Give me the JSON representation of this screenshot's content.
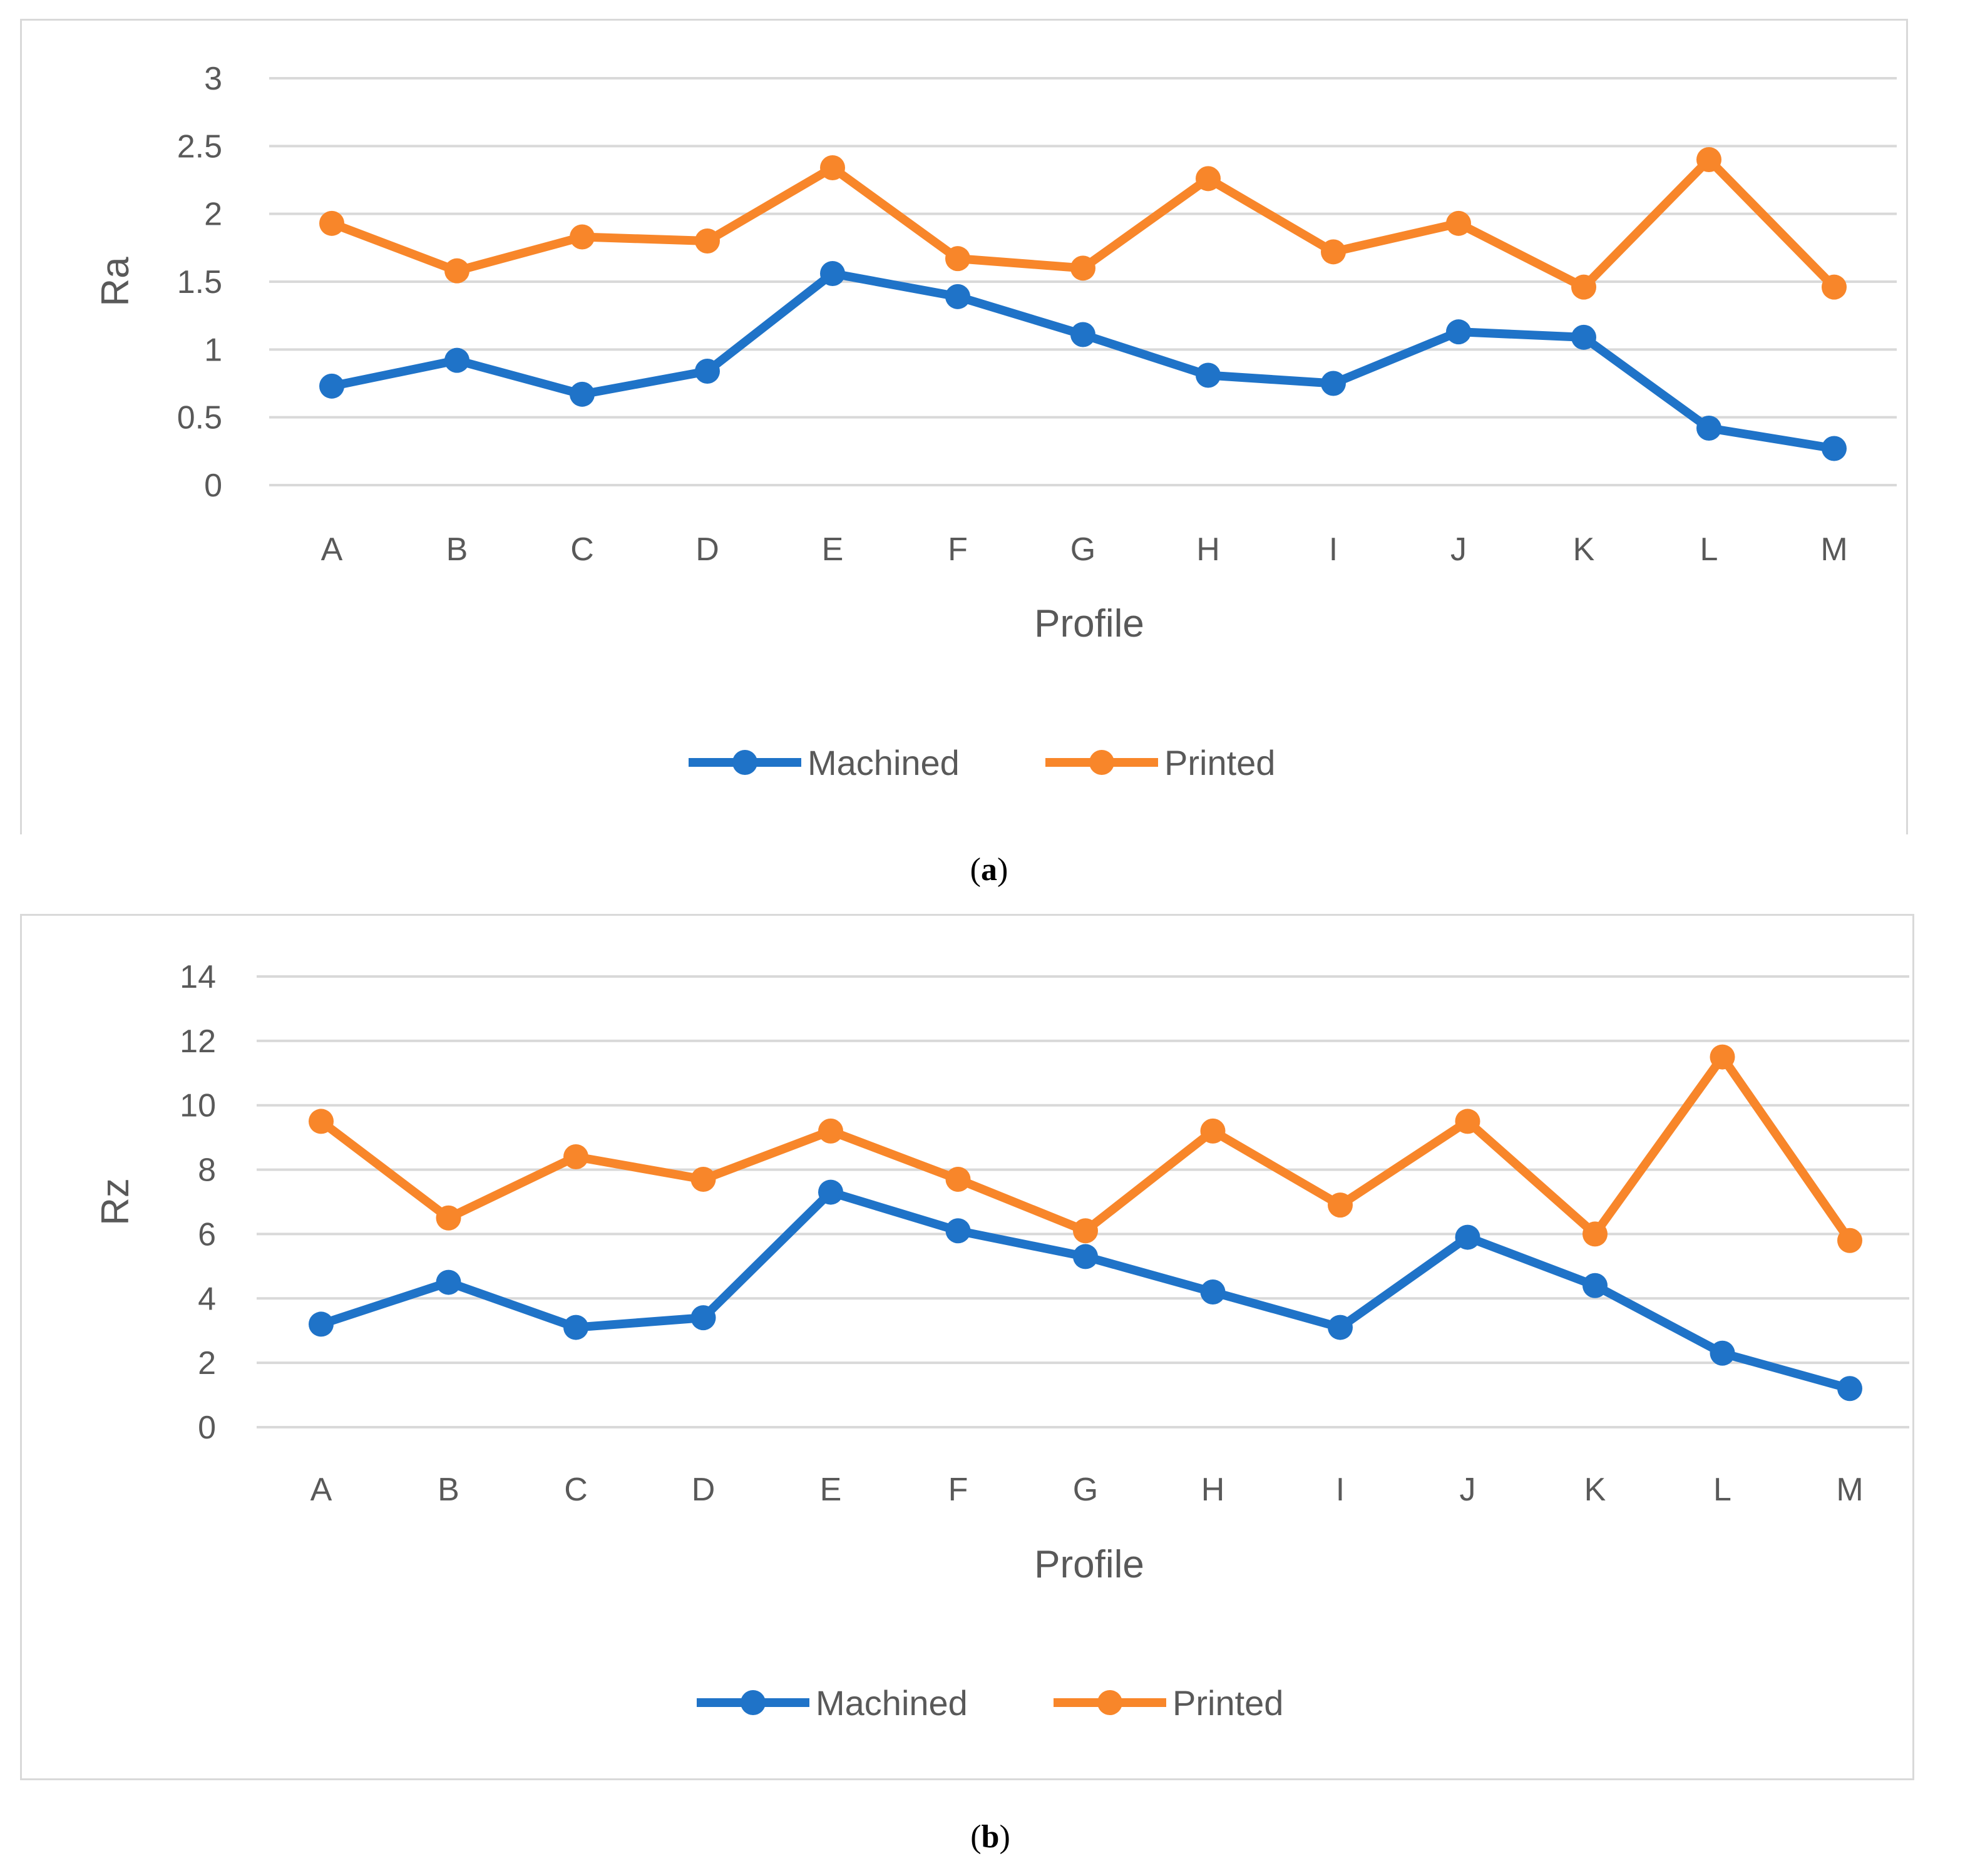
{
  "colors": {
    "machined": "#1f73c8",
    "printed": "#f8862a",
    "grid": "#d9d9d9",
    "text": "#595959"
  },
  "chart_data": [
    {
      "type": "line",
      "caption": "a",
      "categories": [
        "A",
        "B",
        "C",
        "D",
        "E",
        "F",
        "G",
        "H",
        "I",
        "J",
        "K",
        "L",
        "M"
      ],
      "series": [
        {
          "name": "Machined",
          "values": [
            0.73,
            0.92,
            0.67,
            0.84,
            1.56,
            1.39,
            1.11,
            0.81,
            0.75,
            1.13,
            1.09,
            0.42,
            0.27
          ]
        },
        {
          "name": "Printed",
          "values": [
            1.93,
            1.58,
            1.83,
            1.8,
            2.34,
            1.67,
            1.6,
            2.26,
            1.72,
            1.93,
            1.46,
            2.4,
            1.46
          ]
        }
      ],
      "xlabel": "Profile",
      "ylabel": "Ra",
      "ylim": [
        0,
        3
      ],
      "yticks": [
        "0",
        "0.5",
        "1",
        "1.5",
        "2",
        "2.5",
        "3"
      ],
      "legend": "bottom"
    },
    {
      "type": "line",
      "caption": "b",
      "categories": [
        "A",
        "B",
        "C",
        "D",
        "E",
        "F",
        "G",
        "H",
        "I",
        "J",
        "K",
        "L",
        "M"
      ],
      "series": [
        {
          "name": "Machined",
          "values": [
            3.2,
            4.5,
            3.1,
            3.4,
            7.3,
            6.1,
            5.3,
            4.2,
            3.1,
            5.9,
            4.4,
            2.3,
            1.2
          ]
        },
        {
          "name": "Printed",
          "values": [
            9.5,
            6.5,
            8.4,
            7.7,
            9.2,
            7.7,
            6.1,
            9.2,
            6.9,
            9.5,
            6.0,
            11.5,
            5.8
          ]
        }
      ],
      "xlabel": "Profile",
      "ylabel": "Rz",
      "ylim": [
        0,
        14
      ],
      "yticks": [
        "0",
        "2",
        "4",
        "6",
        "8",
        "10",
        "12",
        "14"
      ],
      "legend": "bottom"
    }
  ]
}
